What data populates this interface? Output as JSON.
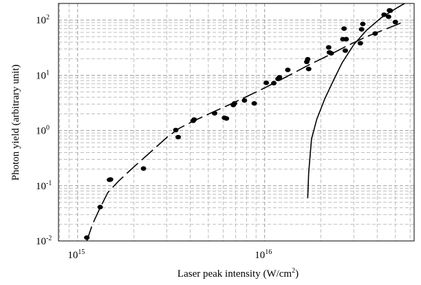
{
  "chart_data": {
    "type": "scatter",
    "xlabel": "Laser peak intensity (W/cm",
    "xlabel_superscript": "2",
    "xlabel_suffix": ")",
    "ylabel": "Photon yield (arbitrary unit)",
    "x_scale": "log",
    "y_scale": "log",
    "xlim": [
      790000000000000.0,
      6.3e+16
    ],
    "ylim": [
      0.01,
      200
    ],
    "grid": true,
    "grid_style": "dashed",
    "x_ticks": [
      {
        "value": 1000000000000000.0,
        "base": "10",
        "exp": "15"
      },
      {
        "value": 1e+16,
        "base": "10",
        "exp": "16"
      }
    ],
    "y_ticks": [
      {
        "value": 100,
        "base": "10",
        "exp": "2"
      },
      {
        "value": 10,
        "base": "10",
        "exp": "1"
      },
      {
        "value": 1,
        "base": "10",
        "exp": "0"
      },
      {
        "value": 0.1,
        "base": "10",
        "exp": "-1"
      },
      {
        "value": 0.01,
        "base": "10",
        "exp": "-2"
      }
    ],
    "series": [
      {
        "kind": "points",
        "color": "#000000",
        "points": [
          [
            1120000000000000.0,
            0.0115
          ],
          [
            1320000000000000.0,
            0.041
          ],
          [
            1480000000000000.0,
            0.128
          ],
          [
            1500000000000000.0,
            0.13
          ],
          [
            2250000000000000.0,
            0.205
          ],
          [
            3350000000000000.0,
            1.02
          ],
          [
            3450000000000000.0,
            0.76
          ],
          [
            4150000000000000.0,
            1.5
          ],
          [
            4200000000000000.0,
            1.58
          ],
          [
            5400000000000000.0,
            2.05
          ],
          [
            6100000000000000.0,
            1.7
          ],
          [
            6250000000000000.0,
            1.65
          ],
          [
            6800000000000000.0,
            2.9
          ],
          [
            6900000000000000.0,
            3.1
          ],
          [
            7800000000000000.0,
            3.5
          ],
          [
            8800000000000000.0,
            3.1
          ],
          [
            1.02e+16,
            7.3
          ],
          [
            1.12e+16,
            7.2
          ],
          [
            1.18e+16,
            8.6
          ],
          [
            1.2e+16,
            9.2
          ],
          [
            1.33e+16,
            12.5
          ],
          [
            1.68e+16,
            17.5
          ],
          [
            1.7e+16,
            19.5
          ],
          [
            1.72e+16,
            13.0
          ],
          [
            2.2e+16,
            32.0
          ],
          [
            2.22e+16,
            26.0
          ],
          [
            2.27e+16,
            25.0
          ],
          [
            2.62e+16,
            45.0
          ],
          [
            2.66e+16,
            70.0
          ],
          [
            2.7e+16,
            28.0
          ],
          [
            2.73e+16,
            45.0
          ],
          [
            3.25e+16,
            38.0
          ],
          [
            3.3e+16,
            68.0
          ],
          [
            3.35e+16,
            85.0
          ],
          [
            3.9e+16,
            57.0
          ],
          [
            4.35e+16,
            125.0
          ],
          [
            4.6e+16,
            115.0
          ],
          [
            4.65e+16,
            150.0
          ],
          [
            4.7e+16,
            148.0
          ],
          [
            5e+16,
            92.0
          ]
        ]
      },
      {
        "kind": "dashed-curve",
        "color": "#000000",
        "points": [
          [
            1120000000000000.0,
            0.01
          ],
          [
            1200000000000000.0,
            0.02
          ],
          [
            1320000000000000.0,
            0.04
          ],
          [
            1450000000000000.0,
            0.075
          ],
          [
            1650000000000000.0,
            0.12
          ],
          [
            2000000000000000.0,
            0.22
          ],
          [
            2500000000000000.0,
            0.43
          ],
          [
            3000000000000000.0,
            0.75
          ],
          [
            3500000000000000.0,
            1.1
          ],
          [
            4200000000000000.0,
            1.5
          ],
          [
            5200000000000000.0,
            2.1
          ],
          [
            6500000000000000.0,
            2.95
          ],
          [
            8000000000000000.0,
            4.1
          ],
          [
            1e+16,
            5.9
          ],
          [
            1.3e+16,
            9.3
          ],
          [
            1.7e+16,
            15.0
          ],
          [
            2.2e+16,
            23.0
          ],
          [
            2.8e+16,
            35.0
          ],
          [
            3.5e+16,
            50.0
          ],
          [
            4.5e+16,
            70.0
          ],
          [
            5.5e+16,
            92.0
          ]
        ]
      },
      {
        "kind": "solid-curve",
        "color": "#000000",
        "points": [
          [
            1.7e+16,
            0.06
          ],
          [
            1.72e+16,
            0.17
          ],
          [
            1.75e+16,
            0.35
          ],
          [
            1.78e+16,
            0.7
          ],
          [
            1.9e+16,
            1.6
          ],
          [
            2.1e+16,
            3.8
          ],
          [
            2.35e+16,
            8.5
          ],
          [
            2.6e+16,
            17.0
          ],
          [
            3e+16,
            36.0
          ],
          [
            3.5e+16,
            65.0
          ],
          [
            4.2e+16,
            110.0
          ],
          [
            5e+16,
            160.0
          ],
          [
            5.6e+16,
            200.0
          ]
        ]
      }
    ]
  }
}
